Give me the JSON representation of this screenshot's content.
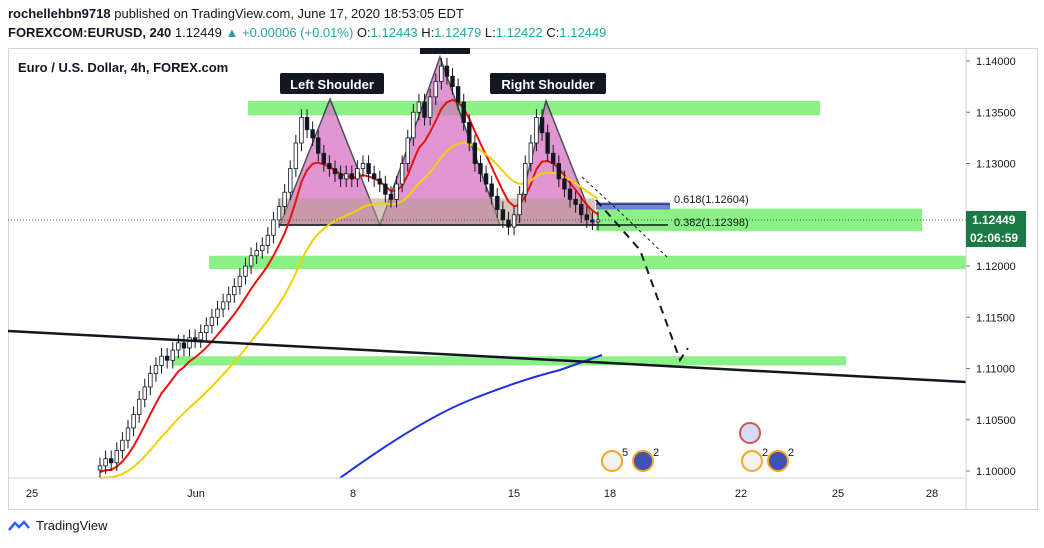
{
  "header": {
    "user": "rochellehbn9718",
    "published": "published on TradingView.com, June 17, 2020 18:53:05 EDT",
    "symbol": "FOREXCOM:EURUSD, 240",
    "last": "1.12449",
    "change": "▲ +0.00006 (+0.01%)",
    "o_label": "O:",
    "o_value": "1.12443",
    "h_label": "H:",
    "h_value": "1.12479",
    "l_label": "L:",
    "l_value": "1.12422",
    "c_label": "C:",
    "c_value": "1.12449"
  },
  "footer": {
    "brand": "TradingView"
  },
  "colors": {
    "up": "#26a69a",
    "candle": "#131722",
    "ema_fast": "#e8120c",
    "ema_mid": "#f2d100",
    "ema_slow": "#1e2ee6",
    "zone": "#7ef07a",
    "pattern": "#d873c2",
    "fib_box": "#5b6bd8",
    "price_tag": "#1a7a43",
    "time_tag": "#1a7a43"
  },
  "chart_data": {
    "type": "candlestick",
    "title": "Euro / U.S. Dollar, 4h, FOREX.com",
    "ylim": [
      1.0995,
      1.1415
    ],
    "x_ticks": [
      "25",
      "Jun",
      "8",
      "15",
      "18",
      "22",
      "25",
      "28"
    ],
    "y_ticks": [
      "1.14000",
      "1.13500",
      "1.13000",
      "1.12500",
      "1.12000",
      "1.11500",
      "1.11000",
      "1.10500",
      "1.10000"
    ],
    "last_price": "1.12449",
    "countdown": "02:06:59",
    "pattern_labels": [
      "Left Shoulder",
      "Right Shoulder"
    ],
    "fib_levels": [
      {
        "ratio": "0.618",
        "value": "1.12604"
      },
      {
        "ratio": "0.382",
        "value": "1.12398"
      }
    ],
    "zones": [
      {
        "low": 1.1347,
        "high": 1.1361
      },
      {
        "low": 1.1234,
        "high": 1.1256
      },
      {
        "low": 1.1197,
        "high": 1.121
      },
      {
        "low": 1.1103,
        "high": 1.1112
      }
    ],
    "event_markers": [
      "5",
      "2",
      "2",
      "2"
    ],
    "closes": [
      1.1005,
      1.1012,
      1.1008,
      1.102,
      1.103,
      1.1042,
      1.1055,
      1.107,
      1.1082,
      1.1095,
      1.1103,
      1.1112,
      1.1108,
      1.1118,
      1.1125,
      1.112,
      1.113,
      1.1128,
      1.1135,
      1.1142,
      1.115,
      1.1158,
      1.1165,
      1.1172,
      1.118,
      1.119,
      1.12,
      1.121,
      1.1215,
      1.122,
      1.123,
      1.1245,
      1.1258,
      1.1272,
      1.1295,
      1.132,
      1.1345,
      1.1333,
      1.1325,
      1.131,
      1.13,
      1.1295,
      1.129,
      1.1285,
      1.129,
      1.1285,
      1.1295,
      1.13,
      1.129,
      1.1285,
      1.128,
      1.127,
      1.1265,
      1.128,
      1.13,
      1.1325,
      1.135,
      1.136,
      1.1345,
      1.1365,
      1.138,
      1.1395,
      1.1385,
      1.1375,
      1.136,
      1.134,
      1.132,
      1.13,
      1.129,
      1.128,
      1.1268,
      1.1255,
      1.1245,
      1.1238,
      1.125,
      1.127,
      1.13,
      1.132,
      1.1345,
      1.133,
      1.131,
      1.13,
      1.1285,
      1.1275,
      1.1265,
      1.126,
      1.125,
      1.1245,
      1.1243,
      1.1245
    ]
  }
}
